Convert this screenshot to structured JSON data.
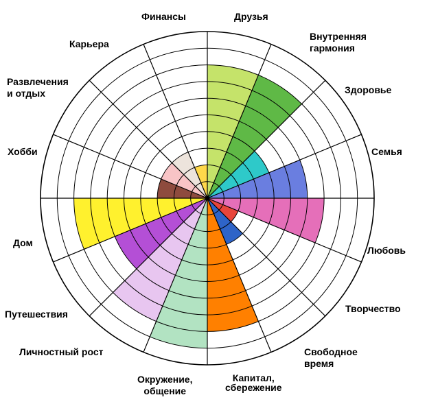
{
  "chart_data": {
    "type": "polar-area",
    "title": "",
    "rings": 10,
    "max": 10,
    "grid": true,
    "segments": [
      {
        "label": "Друзья",
        "value": 8,
        "color": "#c5e36a"
      },
      {
        "label": "Внутренняя\nгармония",
        "value": 8,
        "color": "#5fb946"
      },
      {
        "label": "Здоровье",
        "value": 4,
        "color": "#2ec9c9"
      },
      {
        "label": "Семья",
        "value": 6,
        "color": "#6a7ee0"
      },
      {
        "label": "Любовь",
        "value": 7,
        "color": "#e56fb9"
      },
      {
        "label": "Творчество",
        "value": 2,
        "color": "#e8453b"
      },
      {
        "label": "Свободное\nвремя",
        "value": 3,
        "color": "#2e64c8"
      },
      {
        "label": "Капитал,\nсбережение",
        "value": 8,
        "color": "#ff8000"
      },
      {
        "label": "Окружение,\nобщение",
        "value": 9,
        "color": "#b2e3c2"
      },
      {
        "label": "Личностный рост",
        "value": 8,
        "color": "#e8c6f0"
      },
      {
        "label": "Путешествия",
        "value": 6,
        "color": "#b44fd6"
      },
      {
        "label": "Дом",
        "value": 8,
        "color": "#fff12e"
      },
      {
        "label": "Хобби",
        "value": 3,
        "color": "#8e4b3e"
      },
      {
        "label": "Развлечения\nи отдых",
        "value": 3,
        "color": "#f8c4c6"
      },
      {
        "label": "Карьера",
        "value": 3,
        "color": "#ede4dc"
      },
      {
        "label": "Финансы",
        "value": 2,
        "color": "#ffd84a"
      }
    ]
  }
}
